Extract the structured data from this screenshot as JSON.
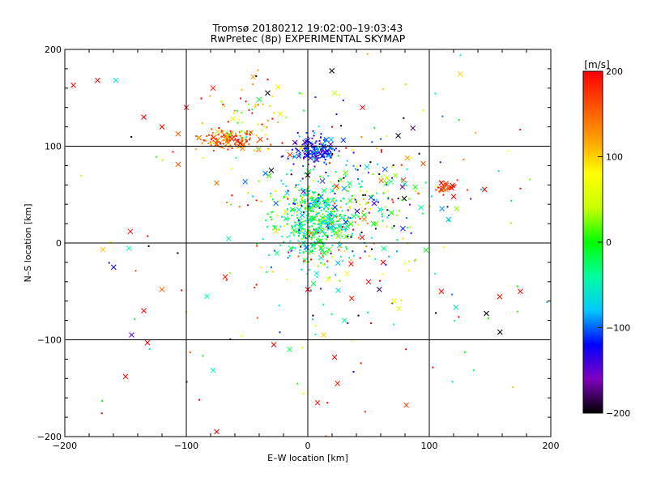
{
  "chart_data": {
    "type": "scatter",
    "title": "Tromsø 20180212 19:02:00–19:03:43",
    "subtitle": "RwPretec (8p) EXPERIMENTAL SKYMAP",
    "xlabel": "E–W location [km]",
    "ylabel": "N–S location [km]",
    "xlim": [
      -200,
      200
    ],
    "ylim": [
      -200,
      200
    ],
    "xticks": [
      -200,
      -100,
      0,
      100,
      200
    ],
    "yticks": [
      -200,
      -100,
      0,
      100,
      200
    ],
    "grid_lines": [
      -100,
      0,
      100
    ],
    "colorbar": {
      "label": "[m/s]",
      "min": -200,
      "max": 200,
      "ticks": [
        200,
        100,
        0,
        -100,
        -200
      ],
      "colormap": [
        "#000000",
        "#7f00c0",
        "#0000ff",
        "#00c8ff",
        "#00ffa0",
        "#00ff00",
        "#c8ff00",
        "#ffff00",
        "#ffa000",
        "#ff5000",
        "#ff0000"
      ]
    },
    "clusters": [
      {
        "x": -65,
        "y": 107,
        "sx": 12,
        "sy": 5,
        "n": 140,
        "v": 150,
        "dv": 30,
        "tag": "orange-red"
      },
      {
        "x": -50,
        "y": 125,
        "sx": 18,
        "sy": 20,
        "n": 70,
        "v": 90,
        "dv": 70,
        "tag": "yellow-green"
      },
      {
        "x": 5,
        "y": 96,
        "sx": 10,
        "sy": 7,
        "n": 170,
        "v": -120,
        "dv": 25,
        "tag": "blue"
      },
      {
        "x": 5,
        "y": 22,
        "sx": 16,
        "sy": 22,
        "n": 420,
        "v": -30,
        "dv": 40,
        "tag": "cyan"
      },
      {
        "x": 40,
        "y": 45,
        "sx": 35,
        "sy": 35,
        "n": 240,
        "v": -40,
        "dv": 120,
        "tag": "mixed"
      },
      {
        "x": 115,
        "y": 58,
        "sx": 6,
        "sy": 4,
        "n": 30,
        "v": 180,
        "dv": 20,
        "tag": "red"
      },
      {
        "x": 0,
        "y": 0,
        "sx": 95,
        "sy": 95,
        "n": 200,
        "v": 60,
        "dv": 160,
        "tag": "scattered"
      }
    ],
    "cross_markers": [
      {
        "x": -193,
        "y": 163,
        "v": 200
      },
      {
        "x": -173,
        "y": 168,
        "v": 200
      },
      {
        "x": -158,
        "y": 168,
        "v": -60
      },
      {
        "x": -135,
        "y": 130,
        "v": 200
      },
      {
        "x": -120,
        "y": 120,
        "v": 200
      },
      {
        "x": -100,
        "y": 140,
        "v": 200
      },
      {
        "x": -78,
        "y": 160,
        "v": 190
      },
      {
        "x": -33,
        "y": 155,
        "v": -200
      },
      {
        "x": 22,
        "y": 155,
        "v": 40
      },
      {
        "x": 45,
        "y": 140,
        "v": 200
      },
      {
        "x": 82,
        "y": 88,
        "v": 120
      },
      {
        "x": 95,
        "y": 82,
        "v": 160
      },
      {
        "x": 110,
        "y": 62,
        "v": 200
      },
      {
        "x": 120,
        "y": 48,
        "v": 200
      },
      {
        "x": -75,
        "y": 62,
        "v": 140
      },
      {
        "x": -30,
        "y": 75,
        "v": -200
      },
      {
        "x": 78,
        "y": 58,
        "v": -150
      },
      {
        "x": -120,
        "y": -48,
        "v": 150
      },
      {
        "x": -135,
        "y": -70,
        "v": 200
      },
      {
        "x": -145,
        "y": -95,
        "v": -150
      },
      {
        "x": -132,
        "y": -103,
        "v": 200
      },
      {
        "x": -150,
        "y": -138,
        "v": 200
      },
      {
        "x": -68,
        "y": -35,
        "v": 200
      },
      {
        "x": -83,
        "y": -55,
        "v": -40
      },
      {
        "x": 0,
        "y": -48,
        "v": 200
      },
      {
        "x": 50,
        "y": -40,
        "v": 200
      },
      {
        "x": 75,
        "y": -68,
        "v": 60
      },
      {
        "x": 30,
        "y": -80,
        "v": -40
      },
      {
        "x": 13,
        "y": -95,
        "v": 100
      },
      {
        "x": -28,
        "y": -105,
        "v": 200
      },
      {
        "x": -15,
        "y": -110,
        "v": -20
      },
      {
        "x": 22,
        "y": -118,
        "v": 200
      },
      {
        "x": 8,
        "y": -165,
        "v": 200
      },
      {
        "x": -75,
        "y": -195,
        "v": 200
      },
      {
        "x": 175,
        "y": -50,
        "v": 200
      },
      {
        "x": 62,
        "y": -20,
        "v": 200
      },
      {
        "x": 110,
        "y": -50,
        "v": 200
      }
    ]
  }
}
